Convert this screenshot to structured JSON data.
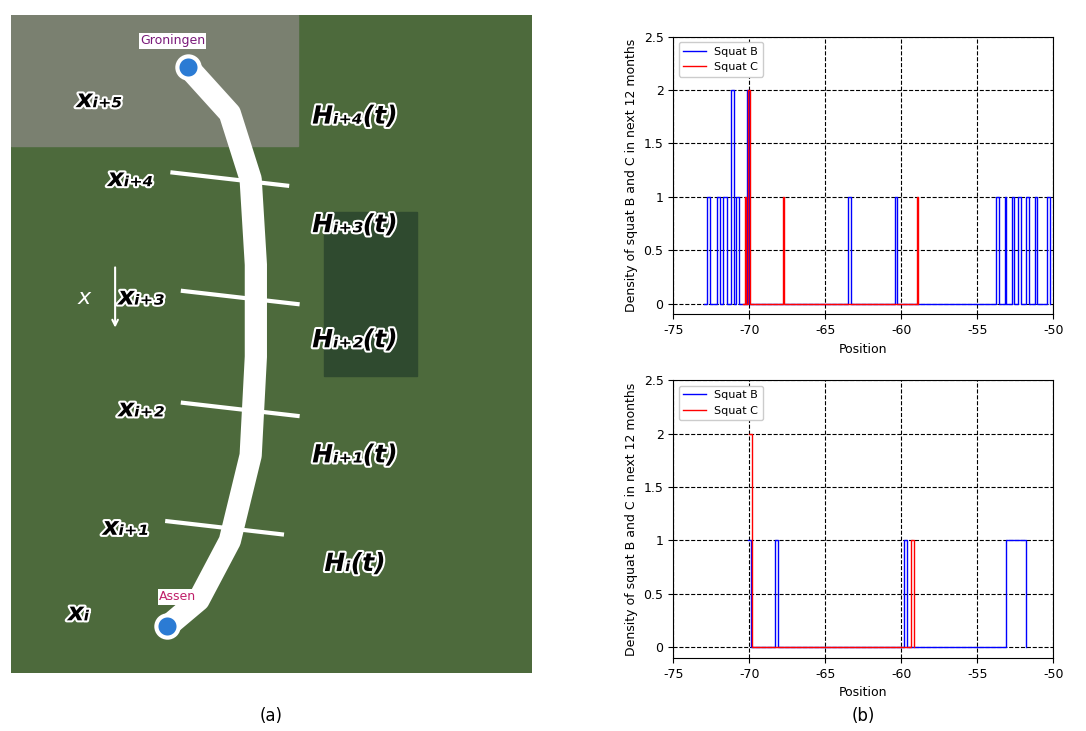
{
  "map": {
    "label": "(a)",
    "places": [
      "Groningen",
      "Assen"
    ],
    "nodes": [
      "xᵢ",
      "xᵢ₊₁",
      "xᵢ₊₂",
      "xᵢ₊₃",
      "xᵢ₊₄",
      "xᵢ₊₅"
    ],
    "segments": [
      "Hᵢ(t)",
      "Hᵢ₊₁(t)",
      "Hᵢ₊₂(t)",
      "Hᵢ₊₃(t)",
      "Hᵢ₊₄(t)"
    ],
    "direction": "x"
  },
  "panel_label": "(b)",
  "chart_data": [
    {
      "type": "step",
      "xlabel": "Position",
      "ylabel": "Density of squat B and C in next 12 months",
      "xlim": [
        -75,
        -50
      ],
      "xticks": [
        -75,
        -70,
        -65,
        -60,
        -55,
        -50
      ],
      "ylim": [
        -0.1,
        2.5
      ],
      "yticks": [
        0,
        0.5,
        1,
        1.5,
        2,
        2.5
      ],
      "grid": true,
      "legend": "upper left",
      "series": [
        {
          "name": "Squat B",
          "color": "#0000ff",
          "x": [
            -73,
            -72.8,
            -72.6,
            -72.1,
            -71.9,
            -71.7,
            -71.5,
            -71.2,
            -71.0,
            -70.9,
            -70.7,
            -70.15,
            -70.0,
            -63.5,
            -63.3,
            -60.4,
            -60.3,
            -53.8,
            -53.6,
            -53.2,
            -53.1,
            -52.7,
            -52.6,
            -52.3,
            -52.1,
            -51.8,
            -51.6,
            -51.2,
            -51.1,
            -50.4,
            -50.2
          ],
          "values": [
            0,
            1,
            0,
            1,
            0,
            1,
            0,
            2,
            0,
            1,
            0,
            2,
            0,
            1,
            0,
            1,
            0,
            1,
            0,
            1,
            0,
            1,
            0,
            1,
            0,
            1,
            0,
            1,
            0,
            1,
            0
          ]
        },
        {
          "name": "Squat C",
          "color": "#ff0000",
          "x": [
            -70.4,
            -70.3,
            -70.2,
            -70.1,
            -69.95,
            -67.8,
            -67.7,
            -59.0,
            -58.9
          ],
          "values": [
            0,
            1,
            0,
            2,
            0,
            1,
            0,
            1,
            0
          ]
        }
      ]
    },
    {
      "type": "step",
      "xlabel": "Position",
      "ylabel": "Density of squat B and C in next 12 months",
      "xlim": [
        -75,
        -50
      ],
      "xticks": [
        -75,
        -70,
        -65,
        -60,
        -55,
        -50
      ],
      "ylim": [
        -0.1,
        2.5
      ],
      "yticks": [
        0,
        0.5,
        1,
        1.5,
        2,
        2.5
      ],
      "grid": true,
      "legend": "upper left",
      "series": [
        {
          "name": "Squat B",
          "color": "#0000ff",
          "x": [
            -70.1,
            -69.9,
            -68.3,
            -68.1,
            -59.8,
            -59.6,
            -53.1,
            -51.8
          ],
          "values": [
            1,
            0,
            1,
            0,
            1,
            0,
            1,
            0
          ]
        },
        {
          "name": "Squat C",
          "color": "#ff0000",
          "x": [
            -70.05,
            -69.85,
            -59.4,
            -59.2
          ],
          "values": [
            2,
            0,
            1,
            0
          ]
        }
      ]
    }
  ]
}
